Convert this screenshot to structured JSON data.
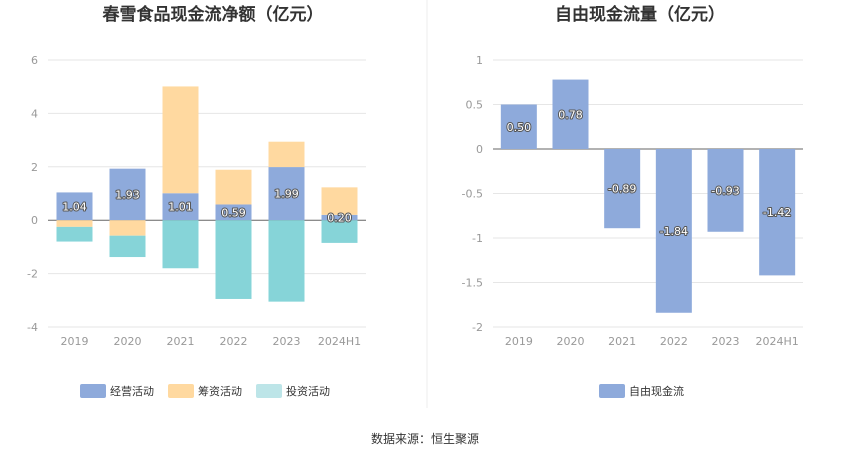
{
  "colors": {
    "operating": "#8eaadb",
    "financing": "#ffd9a0",
    "investing": "#86d4d8",
    "investing_legend": "#bde5e8",
    "fcf": "#8eaadb",
    "grid": "#e6e6e6",
    "axis": "#999999"
  },
  "source_text": "数据来源：恒生聚源",
  "chart_data": [
    {
      "type": "bar",
      "stacked": true,
      "title": "春雪食品现金流净额（亿元）",
      "categories": [
        "2019",
        "2020",
        "2021",
        "2022",
        "2023",
        "2024H1"
      ],
      "ylim": [
        -4,
        6
      ],
      "yticks": [
        "6",
        "4",
        "2",
        "0",
        "-2",
        "-4"
      ],
      "grid": true,
      "legend_position": "bottom",
      "series": [
        {
          "name": "经营活动",
          "values": [
            1.04,
            1.93,
            1.01,
            0.59,
            1.99,
            0.2
          ],
          "labels": [
            "1.04",
            "1.93",
            "1.01",
            "0.59",
            "1.99",
            "0.20"
          ]
        },
        {
          "name": "筹资活动",
          "values": [
            -0.25,
            -0.58,
            4.0,
            1.3,
            0.95,
            1.03
          ]
        },
        {
          "name": "投资活动",
          "values": [
            -0.55,
            -0.8,
            -1.8,
            -2.95,
            -3.05,
            -0.85
          ]
        }
      ]
    },
    {
      "type": "bar",
      "title": "自由现金流量（亿元）",
      "categories": [
        "2019",
        "2020",
        "2021",
        "2022",
        "2023",
        "2024H1"
      ],
      "ylim": [
        -2,
        1
      ],
      "yticks": [
        "1",
        "0.5",
        "0",
        "-0.5",
        "-1",
        "-1.5",
        "-2"
      ],
      "grid": true,
      "legend_position": "bottom",
      "series": [
        {
          "name": "自由现金流",
          "values": [
            0.5,
            0.78,
            -0.89,
            -1.84,
            -0.93,
            -1.42
          ],
          "labels": [
            "0.50",
            "0.78",
            "-0.89",
            "-1.84",
            "-0.93",
            "-1.42"
          ]
        }
      ]
    }
  ]
}
